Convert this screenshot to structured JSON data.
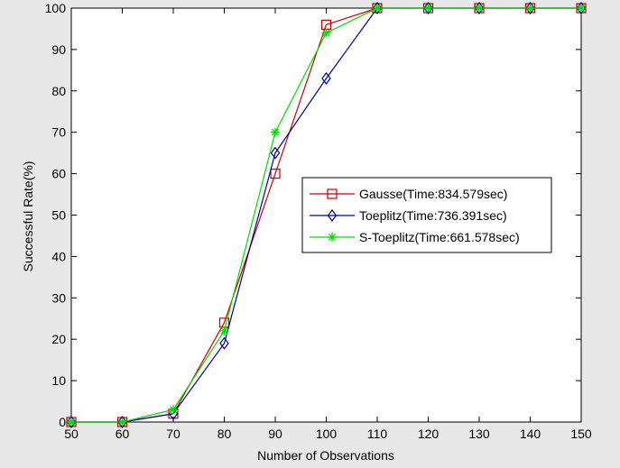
{
  "chart_data": {
    "type": "line",
    "title": "",
    "xlabel": "Number of Observations",
    "ylabel": "Successful Rate(%)",
    "xlim": [
      50,
      150
    ],
    "ylim": [
      0,
      100
    ],
    "x": [
      50,
      60,
      70,
      80,
      90,
      100,
      110,
      120,
      130,
      140,
      150
    ],
    "xticks": [
      50,
      60,
      70,
      80,
      90,
      100,
      110,
      120,
      130,
      140,
      150
    ],
    "yticks": [
      0,
      10,
      20,
      30,
      40,
      50,
      60,
      70,
      80,
      90,
      100
    ],
    "grid": false,
    "legend_position": "center-right",
    "series": [
      {
        "name": "Gausse(Time:834.579sec)",
        "color": "#cc0000",
        "marker": "square",
        "values": [
          0,
          0,
          2,
          24,
          60,
          96,
          100,
          100,
          100,
          100,
          100
        ]
      },
      {
        "name": "Toeplitz(Time:736.391sec)",
        "color": "#000099",
        "marker": "diamond",
        "values": [
          0,
          0,
          2,
          19,
          65,
          83,
          100,
          100,
          100,
          100,
          100
        ]
      },
      {
        "name": "S-Toeplitz(Time:661.578sec)",
        "color": "#00dd00",
        "marker": "star",
        "values": [
          0,
          0,
          3,
          22,
          70,
          94,
          100,
          100,
          100,
          100,
          100
        ]
      }
    ]
  }
}
